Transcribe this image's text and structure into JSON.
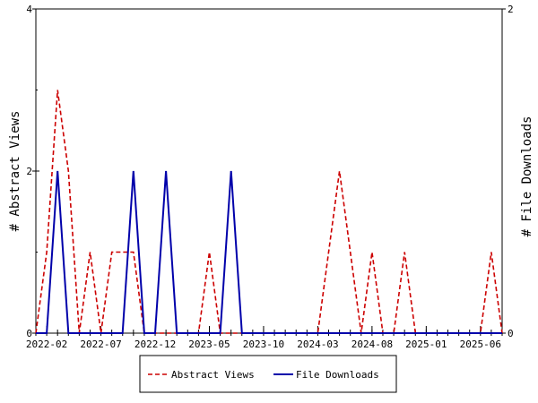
{
  "chart_data": {
    "type": "line",
    "x": [
      "2022-01",
      "2022-02",
      "2022-03",
      "2022-04",
      "2022-05",
      "2022-06",
      "2022-07",
      "2022-08",
      "2022-09",
      "2022-10",
      "2022-11",
      "2022-12",
      "2023-01",
      "2023-02",
      "2023-03",
      "2023-04",
      "2023-05",
      "2023-06",
      "2023-07",
      "2023-08",
      "2023-09",
      "2023-10",
      "2023-11",
      "2023-12",
      "2024-01",
      "2024-02",
      "2024-03",
      "2024-04",
      "2024-05",
      "2024-06",
      "2024-07",
      "2024-08",
      "2024-09",
      "2024-10",
      "2024-11",
      "2024-12",
      "2025-01",
      "2025-02",
      "2025-03",
      "2025-04",
      "2025-05",
      "2025-06",
      "2025-07",
      "2025-08"
    ],
    "series": [
      {
        "name": "Abstract Views",
        "axis": "left",
        "color": "#cc0000",
        "dash": "dashed",
        "values": [
          0,
          1,
          3,
          2,
          0,
          1,
          0,
          1,
          1,
          1,
          0,
          0,
          0,
          0,
          0,
          0,
          1,
          0,
          0,
          0,
          0,
          0,
          0,
          0,
          0,
          0,
          0,
          1,
          2,
          1,
          0,
          1,
          0,
          0,
          1,
          0,
          0,
          0,
          0,
          0,
          0,
          0,
          1,
          0
        ]
      },
      {
        "name": "File Downloads",
        "axis": "right",
        "color": "#0000aa",
        "dash": "solid",
        "values": [
          0,
          0,
          1,
          0,
          0,
          0,
          0,
          0,
          0,
          1,
          0,
          0,
          1,
          0,
          0,
          0,
          0,
          0,
          1,
          0,
          0,
          0,
          0,
          0,
          0,
          0,
          0,
          0,
          0,
          0,
          0,
          0,
          0,
          0,
          0,
          0,
          0,
          0,
          0,
          0,
          0,
          0,
          0,
          0
        ]
      }
    ],
    "xticks": [
      "2022-02",
      "2022-07",
      "2022-12",
      "2023-05",
      "2023-10",
      "2024-03",
      "2024-08",
      "2025-01",
      "2025-06"
    ],
    "yticks_left": [
      "0",
      "2",
      "4"
    ],
    "yticks_right": [
      "0",
      "2"
    ],
    "ylabel_left": "# Abstract Views",
    "ylabel_right": "# File Downloads",
    "ylim_left": [
      0,
      4
    ],
    "ylim_right": [
      0,
      2
    ],
    "legend_position": "bottom-center",
    "grid": false
  }
}
